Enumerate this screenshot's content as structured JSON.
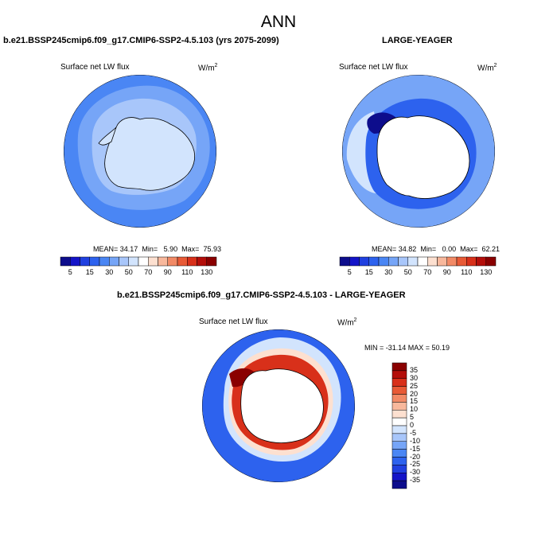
{
  "page": {
    "title": "ANN"
  },
  "palette": {
    "blue_scale": [
      "#0d0d8c",
      "#1414c8",
      "#2040e0",
      "#2d62ee",
      "#4a86f4",
      "#76a5f7",
      "#a8c6fa",
      "#d2e4fd"
    ],
    "white": "#ffffff",
    "red_scale": [
      "#fde0d0",
      "#f8b89c",
      "#f28a66",
      "#e85a36",
      "#d8301a",
      "#b40e0a",
      "#8a0000"
    ],
    "land": "#ffffff",
    "coast": "#000000"
  },
  "panels": [
    {
      "id": "model",
      "title": "b.e21.BSSP245cmip6.f09_g17.CMIP6-SSP2-4.5.103 (yrs 2075-2099)",
      "variable": "Surface net LW flux",
      "units_base": "W/m",
      "units_exp": "2",
      "stats": {
        "mean_label": "MEAN=",
        "mean": "34.17",
        "min_label": "Min=",
        "min": "5.90",
        "max_label": "Max=",
        "max": "75.93"
      },
      "colorbar": {
        "ticks": [
          "5",
          "15",
          "30",
          "50",
          "70",
          "90",
          "110",
          "130"
        ]
      }
    },
    {
      "id": "obs",
      "title": "LARGE-YEAGER",
      "variable": "Surface net LW flux",
      "units_base": "W/m",
      "units_exp": "2",
      "stats": {
        "mean_label": "MEAN=",
        "mean": "34.82",
        "min_label": "Min=",
        "min": "0.00",
        "max_label": "Max=",
        "max": "62.21"
      },
      "colorbar": {
        "ticks": [
          "5",
          "15",
          "30",
          "50",
          "70",
          "90",
          "110",
          "130"
        ]
      }
    },
    {
      "id": "diff",
      "title": "b.e21.BSSP245cmip6.f09_g17.CMIP6-SSP2-4.5.103 - LARGE-YEAGER",
      "variable": "Surface net LW flux",
      "units_base": "W/m",
      "units_exp": "2",
      "stats_line": "MIN = -31.14 MAX =  50.19",
      "colorbar": {
        "ticks": [
          "35",
          "30",
          "25",
          "20",
          "15",
          "10",
          "5",
          "0",
          "-5",
          "-10",
          "-15",
          "-20",
          "-25",
          "-30",
          "-35"
        ]
      }
    }
  ]
}
